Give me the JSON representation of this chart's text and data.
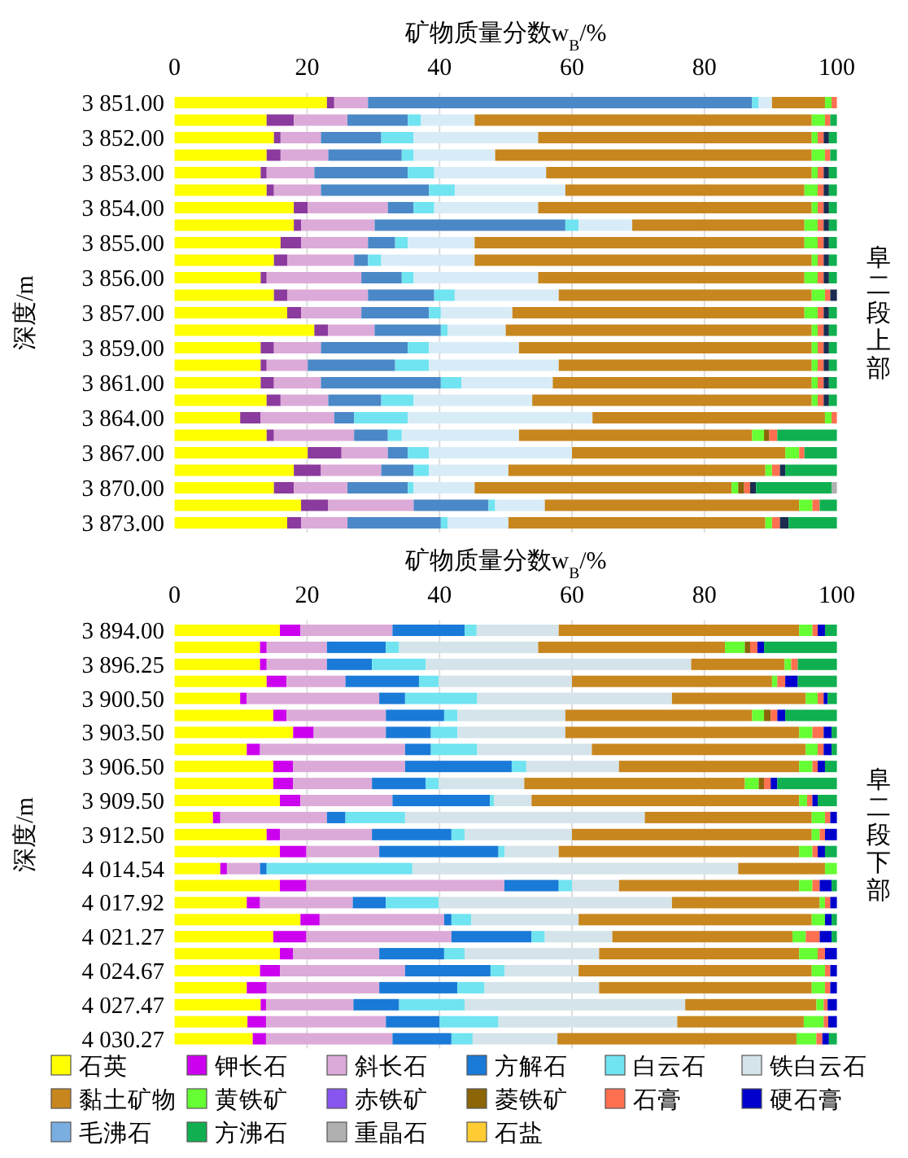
{
  "chart_data": [
    {
      "type": "bar",
      "orientation": "horizontal",
      "stacked": true,
      "title": "矿物质量分数w$_{B}$/%",
      "ylabel": "深度/m",
      "annotations": [
        "阜二段上部"
      ],
      "xlim": [
        0,
        100
      ],
      "xticks": [
        0,
        20,
        40,
        60,
        80,
        100
      ],
      "grid": "x",
      "legend": false,
      "categories": [
        "3 851.00",
        null,
        "3 852.00",
        null,
        "3 853.00",
        null,
        "3 854.00",
        null,
        "3 855.00",
        null,
        "3 856.00",
        null,
        "3 857.00",
        null,
        "3 859.00",
        null,
        "3 861.00",
        null,
        "3 864.00",
        null,
        "3 867.00",
        null,
        "3 870.00",
        null,
        "3 873.00"
      ],
      "series": [
        {
          "color": "#ffff00",
          "values": [
            23.0,
            13.9,
            15.0,
            13.9,
            13.0,
            13.9,
            18.0,
            18.0,
            16.0,
            15.0,
            13.0,
            15.0,
            17.0,
            21.1,
            13.0,
            13.0,
            13.0,
            13.9,
            9.9,
            13.9,
            20.1,
            18.0,
            15.0,
            19.1,
            17.0
          ]
        },
        {
          "color": "#8b3a9e",
          "values": [
            1.1,
            4.1,
            1.0,
            2.1,
            0.9,
            1.1,
            2.1,
            1.1,
            3.1,
            2.0,
            0.9,
            2.0,
            2.1,
            2.1,
            2.0,
            0.9,
            2.0,
            2.1,
            3.1,
            1.1,
            5.1,
            4.1,
            3.0,
            4.1,
            2.1
          ]
        },
        {
          "color": "#dcaad8",
          "values": [
            5.1,
            8.1,
            6.1,
            7.2,
            7.2,
            7.1,
            12.1,
            11.1,
            10.1,
            10.1,
            14.3,
            12.2,
            9.1,
            7.0,
            7.1,
            6.2,
            7.1,
            7.2,
            11.1,
            12.1,
            7.0,
            9.1,
            8.1,
            12.9,
            7.0
          ]
        },
        {
          "color": "#4a88c8",
          "values": [
            58.0,
            9.1,
            9.1,
            11.1,
            14.1,
            16.3,
            3.9,
            28.8,
            4.1,
            2.1,
            6.1,
            10.0,
            10.2,
            10.0,
            13.1,
            13.2,
            18.1,
            8.0,
            3.0,
            5.1,
            3.0,
            4.9,
            9.1,
            11.3,
            14.1
          ]
        },
        {
          "color": "#70e4f0",
          "values": [
            1.0,
            2.0,
            4.9,
            1.8,
            4.0,
            3.9,
            3.1,
            2.0,
            1.9,
            2.0,
            1.8,
            3.1,
            1.8,
            1.0,
            3.2,
            5.1,
            3.1,
            4.9,
            8.1,
            2.1,
            3.2,
            2.3,
            0.9,
            1.0,
            1.0
          ]
        },
        {
          "color": "#d8ecf8",
          "values": [
            2.0,
            8.1,
            18.8,
            12.3,
            16.9,
            16.7,
            15.7,
            8.1,
            10.1,
            14.1,
            18.8,
            15.7,
            10.8,
            8.8,
            13.6,
            19.6,
            13.8,
            17.9,
            27.9,
            17.7,
            21.6,
            12.0,
            9.2,
            7.5,
            9.2
          ]
        },
        {
          "color": "#c8861e",
          "values": [
            8.0,
            50.9,
            41.3,
            47.8,
            40.1,
            36.1,
            41.3,
            26.0,
            49.8,
            50.9,
            40.2,
            38.2,
            44.1,
            46.2,
            44.2,
            38.2,
            39.1,
            42.2,
            35.1,
            35.2,
            32.2,
            38.8,
            38.8,
            38.4,
            38.8
          ]
        },
        {
          "color": "#66ff33",
          "values": [
            1.0,
            2.0,
            0.9,
            2.0,
            0.9,
            2.0,
            0.9,
            2.0,
            2.0,
            0.9,
            2.0,
            2.0,
            2.0,
            0.9,
            0.9,
            0.9,
            0.9,
            0.9,
            1.0,
            1.8,
            2.1,
            1.0,
            1.0,
            2.0,
            1.0
          ]
        },
        {
          "color": "#8855ee",
          "values": [
            0,
            0,
            0,
            0,
            0,
            0,
            0,
            0,
            0,
            0,
            0,
            0,
            0,
            0,
            0,
            0,
            0,
            0,
            0,
            0,
            0,
            0,
            0,
            0,
            0
          ]
        },
        {
          "color": "#8b6508",
          "values": [
            0,
            0,
            0,
            0,
            0,
            0,
            0,
            0,
            0,
            0,
            0,
            0,
            0,
            0,
            0,
            0,
            0,
            0,
            0,
            0.8,
            0,
            0,
            0.9,
            0,
            0
          ]
        },
        {
          "color": "#ff7050",
          "values": [
            0.8,
            0.8,
            0.9,
            0.8,
            0.9,
            0.9,
            0.9,
            0.9,
            0.9,
            0.9,
            0.9,
            0.8,
            0.9,
            0.9,
            0.9,
            0.9,
            0.9,
            0.9,
            0.8,
            1.2,
            0.8,
            1.2,
            0.9,
            1.1,
            1.2
          ]
        },
        {
          "color": "#1c2c50",
          "values": [
            0,
            0,
            0.8,
            0,
            0.8,
            0.8,
            0.8,
            0.8,
            0.8,
            0.8,
            0.8,
            1.0,
            0.8,
            0.8,
            0.8,
            0.8,
            0.8,
            0.8,
            0,
            0,
            0,
            0.8,
            0.9,
            0,
            1.3
          ]
        },
        {
          "color": "#7aaee0",
          "values": [
            0,
            0,
            0,
            0,
            0,
            0,
            0,
            0,
            0,
            0,
            0,
            0,
            0,
            0,
            0,
            0,
            0,
            0,
            0,
            0,
            0,
            0,
            0,
            0,
            0
          ]
        },
        {
          "color": "#10b050",
          "values": [
            0,
            1.0,
            1.2,
            1.0,
            1.2,
            1.2,
            1.2,
            1.2,
            1.2,
            1.2,
            1.2,
            0,
            1.2,
            1.2,
            1.2,
            1.2,
            1.2,
            1.2,
            0,
            9.0,
            4.9,
            7.8,
            11.4,
            2.6,
            7.3
          ]
        },
        {
          "color": "#b0b0b0",
          "values": [
            0,
            0,
            0,
            0,
            0,
            0,
            0,
            0,
            0,
            0,
            0,
            0,
            0,
            0,
            0,
            0,
            0,
            0,
            0,
            0,
            0,
            0,
            0.8,
            0,
            0
          ]
        },
        {
          "color": "#ffcc33",
          "values": [
            0,
            0,
            0,
            0,
            0,
            0,
            0,
            0,
            0,
            0,
            0,
            0,
            0,
            0,
            0,
            0,
            0,
            0,
            0,
            0,
            0,
            0,
            0,
            0,
            0
          ]
        }
      ]
    },
    {
      "type": "bar",
      "orientation": "horizontal",
      "stacked": true,
      "title": "矿物质量分数w$_{B}$/%",
      "ylabel": "深度/m",
      "annotations": [
        "阜二段下部"
      ],
      "xlim": [
        0,
        100
      ],
      "xticks": [
        0,
        20,
        40,
        60,
        80,
        100
      ],
      "grid": "x",
      "legend": "bottom",
      "categories": [
        "3 894.00",
        null,
        "3 896.25",
        null,
        "3 900.50",
        null,
        "3 903.50",
        null,
        "3 906.50",
        null,
        "3 909.50",
        null,
        "3 912.50",
        null,
        "4 014.54",
        null,
        "4 017.92",
        null,
        "4 021.27",
        null,
        "4 024.67",
        null,
        "4 027.47",
        null,
        "4 030.27"
      ],
      "series": [
        {
          "name": "石英",
          "color": "#ffff00",
          "values": [
            15.9,
            12.9,
            12.9,
            13.9,
            9.9,
            14.9,
            17.9,
            10.9,
            14.9,
            14.9,
            15.9,
            5.8,
            13.9,
            15.9,
            6.9,
            15.9,
            10.9,
            19.0,
            14.9,
            15.9,
            12.9,
            10.9,
            13.0,
            11.0,
            11.8
          ]
        },
        {
          "name": "钾长石",
          "color": "#cc00ee",
          "values": [
            3.1,
            1.0,
            1.0,
            3.0,
            1.0,
            2.0,
            3.1,
            2.0,
            3.0,
            3.0,
            3.1,
            1.1,
            2.0,
            4.0,
            1.0,
            4.0,
            2.0,
            2.9,
            5.0,
            2.0,
            3.0,
            3.0,
            0.8,
            2.8,
            2.0
          ]
        },
        {
          "name": "斜长石",
          "color": "#dcaad8",
          "values": [
            13.9,
            9.1,
            9.1,
            8.9,
            20.0,
            15.0,
            10.9,
            21.9,
            16.9,
            11.9,
            13.9,
            16.1,
            13.9,
            11.0,
            5.0,
            29.9,
            14.0,
            18.8,
            21.9,
            13.0,
            18.9,
            17.0,
            13.2,
            18.1,
            19.1
          ]
        },
        {
          "name": "方解石",
          "color": "#1a7ad8",
          "values": [
            10.9,
            8.9,
            6.8,
            11.1,
            3.9,
            8.8,
            6.8,
            3.9,
            16.1,
            8.1,
            14.7,
            2.8,
            12.0,
            18.0,
            1.0,
            8.2,
            5.0,
            1.1,
            12.1,
            9.8,
            12.9,
            11.8,
            6.9,
            8.1,
            8.9
          ]
        },
        {
          "name": "白云石",
          "color": "#70e4f0",
          "values": [
            1.8,
            2.0,
            8.1,
            3.0,
            10.9,
            2.0,
            4.0,
            7.0,
            2.2,
            2.0,
            0.6,
            9.0,
            2.0,
            0.9,
            22.0,
            2.0,
            8.0,
            3.0,
            2.0,
            3.1,
            2.1,
            4.1,
            9.9,
            8.9,
            3.2
          ]
        },
        {
          "name": "铁白云石",
          "color": "#d4e4ea",
          "values": [
            12.4,
            21.0,
            40.1,
            20.1,
            29.4,
            16.3,
            16.3,
            17.3,
            14.0,
            12.9,
            5.7,
            36.2,
            16.2,
            8.2,
            49.2,
            7.1,
            35.2,
            16.2,
            10.2,
            20.3,
            11.2,
            17.3,
            33.3,
            27.0,
            12.8
          ]
        },
        {
          "name": "黏土矿物",
          "color": "#c8861e",
          "values": [
            36.3,
            28.2,
            14.1,
            30.2,
            20.2,
            28.2,
            35.3,
            32.3,
            27.2,
            33.3,
            40.4,
            25.2,
            36.2,
            36.3,
            13.1,
            27.2,
            22.3,
            35.2,
            27.2,
            30.2,
            35.2,
            32.1,
            19.8,
            19.1,
            36.1
          ]
        },
        {
          "name": "黄铁矿",
          "color": "#66ff33",
          "values": [
            2.0,
            3.0,
            1.0,
            0.8,
            1.8,
            1.8,
            2.0,
            1.8,
            2.0,
            2.1,
            1.2,
            2.0,
            1.2,
            2.0,
            1.8,
            2.0,
            0.8,
            2.0,
            2.0,
            2.8,
            2.0,
            2.0,
            1.1,
            3.0,
            3.0
          ]
        },
        {
          "name": "赤铁矿",
          "color": "#8855ee",
          "values": [
            0,
            0,
            0,
            0,
            0,
            0,
            0,
            0,
            0,
            0,
            0,
            0,
            0,
            0,
            0,
            0,
            0,
            0,
            0,
            0,
            0,
            0,
            0,
            0,
            0
          ]
        },
        {
          "name": "菱铁矿",
          "color": "#8b6508",
          "values": [
            0,
            0.8,
            0,
            0,
            0,
            1.0,
            0,
            0,
            0,
            0.8,
            0,
            0,
            0,
            0,
            0,
            0,
            0,
            0,
            0,
            0,
            0,
            0,
            0,
            0,
            0
          ]
        },
        {
          "name": "石膏",
          "color": "#ff7050",
          "values": [
            0.8,
            1.1,
            1.0,
            1.2,
            0.9,
            1.0,
            1.7,
            0.9,
            0.8,
            1.0,
            0.8,
            0.8,
            0.8,
            0.8,
            0,
            1.1,
            0.8,
            0,
            2.1,
            1.1,
            0.8,
            0.8,
            0.6,
            0.7,
            0.9
          ]
        },
        {
          "name": "硬石膏",
          "color": "#0000cc",
          "values": [
            1.1,
            1.0,
            0,
            1.9,
            0.6,
            1.2,
            1.2,
            1.2,
            1.1,
            1.0,
            0.8,
            1.0,
            1.8,
            1.1,
            0,
            1.8,
            1.0,
            1.0,
            1.8,
            1.8,
            1.0,
            1.0,
            1.4,
            1.3,
            1.0
          ]
        },
        {
          "name": "毛沸石",
          "color": "#7aaee0",
          "values": [
            0,
            0,
            0,
            0,
            0,
            0,
            0,
            0,
            0,
            0,
            0,
            0,
            0,
            0,
            0,
            0,
            0,
            0,
            0,
            0,
            0,
            0,
            0,
            0,
            0
          ]
        },
        {
          "name": "方沸石",
          "color": "#10b050",
          "values": [
            1.8,
            11.0,
            5.9,
            5.9,
            1.4,
            7.8,
            0.8,
            0.8,
            1.8,
            9.0,
            2.9,
            0,
            0,
            1.8,
            0,
            0.8,
            0,
            0.8,
            0.8,
            0,
            0,
            0,
            0,
            0,
            1.2
          ]
        },
        {
          "name": "重晶石",
          "color": "#b0b0b0",
          "values": [
            0,
            0,
            0,
            0,
            0,
            0,
            0,
            0,
            0,
            0,
            0,
            0,
            0,
            0,
            0,
            0,
            0,
            0,
            0,
            0,
            0,
            0,
            0,
            0,
            0
          ]
        },
        {
          "name": "石盐",
          "color": "#ffcc33",
          "values": [
            0,
            0,
            0,
            0,
            0,
            0,
            0,
            0,
            0,
            0,
            0,
            0,
            0,
            0,
            0,
            0,
            0,
            0,
            0,
            0,
            0,
            0,
            0,
            0,
            0
          ]
        }
      ]
    }
  ]
}
